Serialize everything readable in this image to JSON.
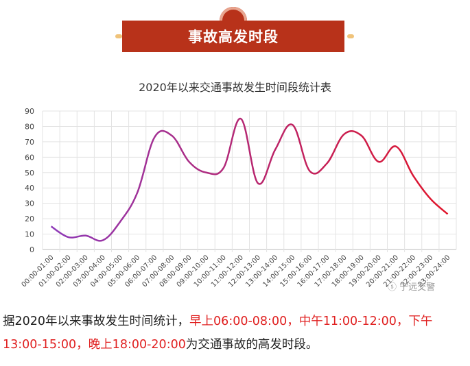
{
  "banner": {
    "title": "事故高发时段"
  },
  "watermark": "宁远交警",
  "caption": {
    "prefix": "据2020年以来事故发生时间统计，",
    "highlight": "早上06:00-08:00，中午11:00-12:00，下午13:00-15:00，晚上18:00-20:00",
    "suffix": "为交通事故的高发时段。"
  },
  "colors": {
    "banner": "#b8321a",
    "line_start": "#8e3ab8",
    "line_end": "#e0142a",
    "highlight": "#e02020"
  },
  "chart_data": {
    "type": "line",
    "title": "2020年以来交通事故发生时间段统计表",
    "categories": [
      "00:00-01:00",
      "01:00-02:00",
      "02:00-03:00",
      "03:00-04:00",
      "04:00-05:00",
      "05:00-06:00",
      "06:00-07:00",
      "07:00-08:00",
      "08:00-09:00",
      "09:00-10:00",
      "10:00-11:00",
      "11:00-12:00",
      "12:00-13:00",
      "13:00-14:00",
      "14:00-15:00",
      "15:00-16:00",
      "16:00-17:00",
      "17:00-18:00",
      "18:00-19:00",
      "19:00-20:00",
      "20:00-21:00",
      "21:00-22:00",
      "22:00-23:00",
      "23:00-24:00"
    ],
    "values": [
      15,
      8,
      9,
      6,
      18,
      37,
      73,
      74,
      57,
      50,
      53,
      85,
      43,
      65,
      81,
      51,
      56,
      75,
      74,
      57,
      67,
      48,
      33,
      23
    ],
    "ylim": [
      0,
      90
    ],
    "yticks": [
      0,
      10,
      20,
      30,
      40,
      50,
      60,
      70,
      80,
      90
    ],
    "grid": true,
    "xlabel": "",
    "ylabel": ""
  }
}
